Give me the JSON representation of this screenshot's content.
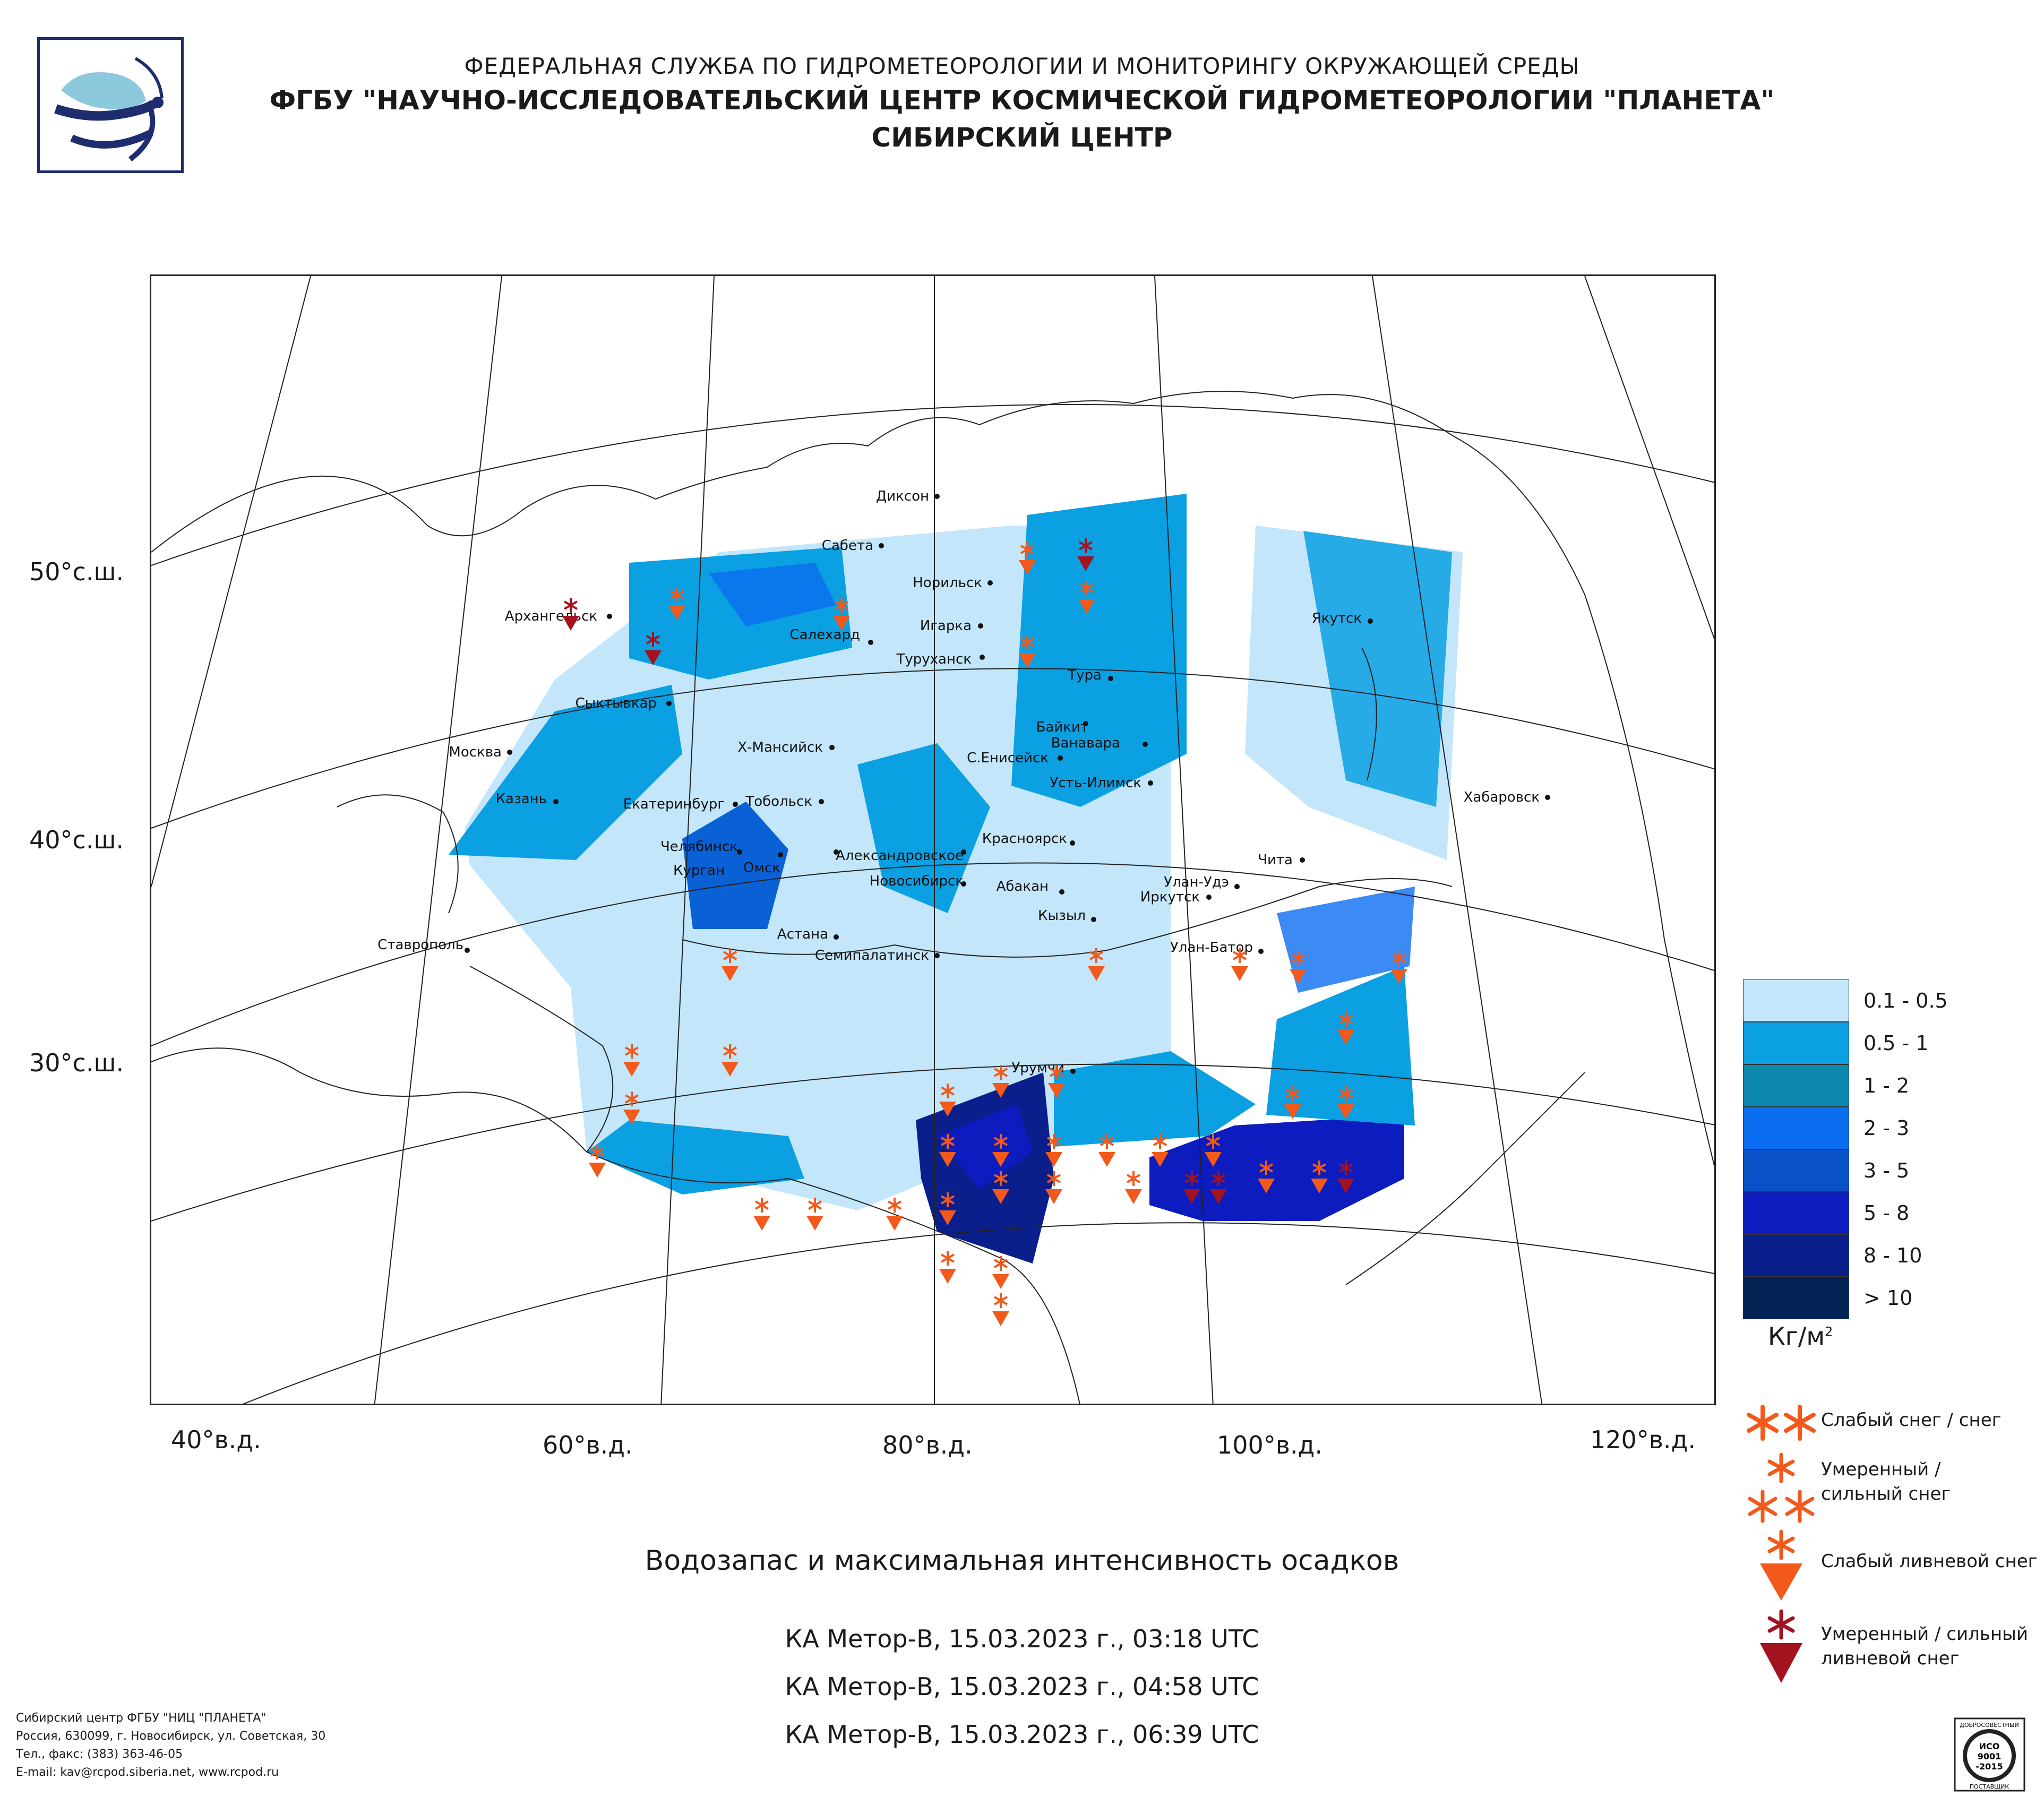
{
  "header": {
    "agency": "ФЕДЕРАЛЬНАЯ СЛУЖБА ПО ГИДРОМЕТЕОРОЛОГИИ И МОНИТОРИНГУ ОКРУЖАЮЩЕЙ СРЕДЫ",
    "center": "ФГБУ \"НАУЧНО-ИССЛЕДОВАТЕЛЬСКИЙ ЦЕНТР КОСМИЧЕСКОЙ ГИДРОМЕТЕОРОЛОГИИ \"ПЛАНЕТА\"",
    "branch": "СИБИРСКИЙ ЦЕНТР"
  },
  "map": {
    "lat_labels": [
      "50°с.ш.",
      "40°с.ш.",
      "30°с.ш."
    ],
    "lon_labels": [
      "40°в.д.",
      "60°в.д.",
      "80°в.д.",
      "100°в.д.",
      "120°в.д."
    ],
    "cities": [
      "Диксон",
      "Сабета",
      "Норильск",
      "Игарка",
      "Салехард",
      "Туруханск",
      "Архангельск",
      "Якутск",
      "Тура",
      "Сыктывкар",
      "Байкит",
      "Ванавара",
      "Москва",
      "Х-Мансийск",
      "С.Енисейск",
      "Усть-Илимск",
      "Хабаровск",
      "Казань",
      "Екатеринбург",
      "Тобольск",
      "Красноярск",
      "Челябинск",
      "Чита",
      "Курган",
      "Александровское",
      "Омск",
      "Улан-Удэ",
      "Новосибирск",
      "Абакан",
      "Иркутск",
      "Кызыл",
      "Ставрополь",
      "Астана",
      "Семипалатинск",
      "Улан-Батор",
      "Урумчи"
    ]
  },
  "legend": {
    "colors": [
      "#c3e6fa",
      "#0aa0e2",
      "#0c87ad",
      "#0b6df0",
      "#0851c6",
      "#0c1cbe",
      "#0a1f8c",
      "#052456"
    ],
    "ranges": [
      "0.1 - 0.5",
      "0.5 - 1",
      "1 - 2",
      "2 - 3",
      "3 - 5",
      "5 - 8",
      "8 - 10",
      "> 10"
    ],
    "units": "Кг/м",
    "units_sup": "2"
  },
  "symbols": {
    "light_snow": "Слабый снег / снег",
    "moderate_snow": "Умеренный / сильный снег",
    "light_shower_snow": "Слабый ливневой снег",
    "moderate_shower_snow": "Умеренный / сильный ливневой снег",
    "colors": {
      "orange": "#f2591b",
      "darkred": "#a3121f"
    }
  },
  "title": "Водозапас и максимальная интенсивность осадков",
  "passes": [
    "КА Метор-В, 15.03.2023 г., 03:18 UTC",
    "КА Метор-В, 15.03.2023 г., 04:58 UTC",
    "КА Метор-В, 15.03.2023 г., 06:39 UTC"
  ],
  "footer": {
    "line1": "Сибирский центр ФГБУ \"НИЦ \"ПЛАНЕТА\"",
    "line2": "Россия, 630099, г. Новосибирск, ул. Советская, 30",
    "line3": "Тел., факс: (383) 363-46-05",
    "line4": "E-mail: kav@rcpod.siberia.net, www.rcpod.ru"
  },
  "iso": {
    "top": "ДОБРОСОВЕСТНЫЙ",
    "l1": "ИСО",
    "l2": "9001",
    "l3": "-2015",
    "bottom": "ПОСТАВЩИК"
  }
}
